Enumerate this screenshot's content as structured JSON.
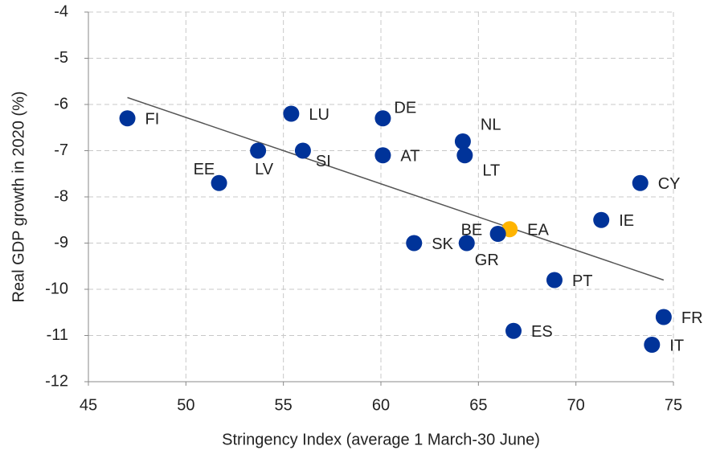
{
  "chart_data": {
    "type": "scatter",
    "xlabel": "Stringency Index (average 1 March-30 June)",
    "ylabel": "Real GDP growth in 2020 (%)",
    "labels": [
      "FI",
      "LU",
      "DE",
      "NL",
      "LT",
      "AT",
      "LV",
      "SI",
      "EE",
      "CY",
      "IE",
      "EA",
      "BE",
      "GR",
      "SK",
      "PT",
      "ES",
      "FR",
      "IT"
    ],
    "x": [
      47.0,
      55.4,
      60.1,
      64.2,
      64.3,
      60.1,
      53.7,
      56.0,
      51.7,
      73.3,
      71.3,
      66.6,
      66.0,
      64.4,
      61.7,
      68.9,
      66.8,
      74.5,
      73.9
    ],
    "y": [
      -6.3,
      -6.2,
      -6.3,
      -6.8,
      -7.1,
      -7.1,
      -7.0,
      -7.0,
      -7.7,
      -7.7,
      -8.5,
      -8.7,
      -8.8,
      -9.0,
      -9.0,
      -9.8,
      -10.9,
      -10.6,
      -11.2
    ],
    "colors": [
      "#003399",
      "#003399",
      "#003399",
      "#003399",
      "#003399",
      "#003399",
      "#003399",
      "#003399",
      "#003399",
      "#003399",
      "#003399",
      "#ffb400",
      "#003399",
      "#003399",
      "#003399",
      "#003399",
      "#003399",
      "#003399",
      "#003399"
    ],
    "trend": {
      "x": [
        47.0,
        74.5
      ],
      "y": [
        -5.85,
        -9.8
      ],
      "color": "#555555"
    },
    "xlim": [
      45,
      75
    ],
    "xticks": [
      45,
      50,
      55,
      60,
      65,
      70,
      75
    ],
    "ylim": [
      -12,
      -4
    ],
    "yticks": [
      -12,
      -11,
      -10,
      -9,
      -8,
      -7,
      -6,
      -5,
      -4
    ],
    "grid": true
  }
}
